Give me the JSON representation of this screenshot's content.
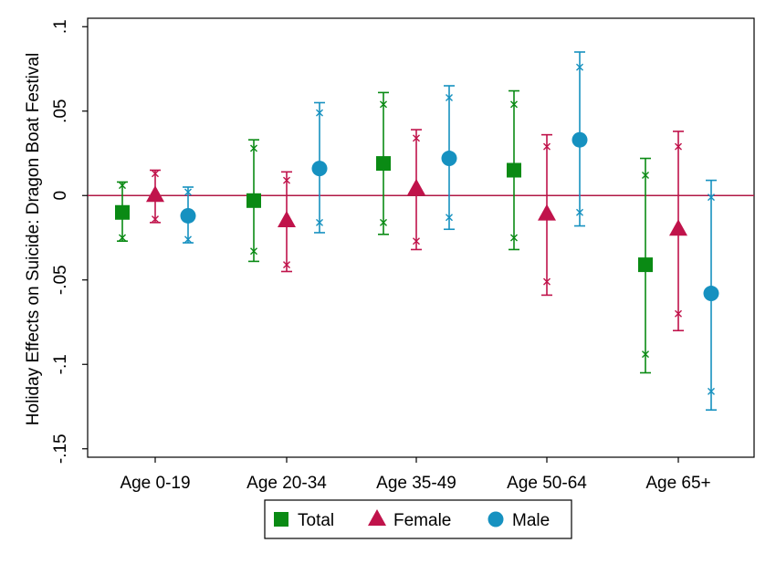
{
  "chart_data": {
    "type": "scatter",
    "ylabel": "Holiday Effects on Suicide: Dragon Boat Festival",
    "xlabel": "",
    "categories": [
      "Age 0-19",
      "Age 20-34",
      "Age 35-49",
      "Age 50-64",
      "Age 65+"
    ],
    "ylim": [
      -0.155,
      0.105
    ],
    "yticks": [
      0.1,
      0.05,
      0,
      -0.05,
      -0.1,
      -0.15
    ],
    "ytick_labels": [
      ".1",
      ".05",
      "0",
      "-.05",
      "-.1",
      "-.15"
    ],
    "reference_line": 0,
    "reference_line_color": "#b01845",
    "legend_position": "bottom",
    "series": [
      {
        "name": "Total",
        "marker": "square",
        "color": "#0a8a14",
        "values": [
          -0.01,
          -0.003,
          0.019,
          0.015,
          -0.041
        ],
        "ci_95": [
          [
            -0.027,
            0.008
          ],
          [
            -0.039,
            0.033
          ],
          [
            -0.023,
            0.061
          ],
          [
            -0.032,
            0.062
          ],
          [
            -0.105,
            0.022
          ]
        ],
        "ci_90": [
          [
            -0.025,
            0.006
          ],
          [
            -0.033,
            0.028
          ],
          [
            -0.016,
            0.054
          ],
          [
            -0.025,
            0.054
          ],
          [
            -0.094,
            0.012
          ]
        ]
      },
      {
        "name": "Female",
        "marker": "triangle",
        "color": "#c0134b",
        "values": [
          0.0,
          -0.015,
          0.004,
          -0.011,
          -0.02
        ],
        "ci_95": [
          [
            -0.016,
            0.015
          ],
          [
            -0.045,
            0.014
          ],
          [
            -0.032,
            0.039
          ],
          [
            -0.059,
            0.036
          ],
          [
            -0.08,
            0.038
          ]
        ],
        "ci_90": [
          [
            -0.014,
            0.013
          ],
          [
            -0.041,
            0.009
          ],
          [
            -0.027,
            0.034
          ],
          [
            -0.051,
            0.029
          ],
          [
            -0.07,
            0.029
          ]
        ]
      },
      {
        "name": "Male",
        "marker": "circle",
        "color": "#1691c0",
        "values": [
          -0.012,
          0.016,
          0.022,
          0.033,
          -0.058
        ],
        "ci_95": [
          [
            -0.028,
            0.005
          ],
          [
            -0.022,
            0.055
          ],
          [
            -0.02,
            0.065
          ],
          [
            -0.018,
            0.085
          ],
          [
            -0.127,
            0.009
          ]
        ],
        "ci_90": [
          [
            -0.026,
            0.002
          ],
          [
            -0.016,
            0.049
          ],
          [
            -0.013,
            0.058
          ],
          [
            -0.01,
            0.076
          ],
          [
            -0.116,
            -0.001
          ]
        ]
      }
    ]
  }
}
